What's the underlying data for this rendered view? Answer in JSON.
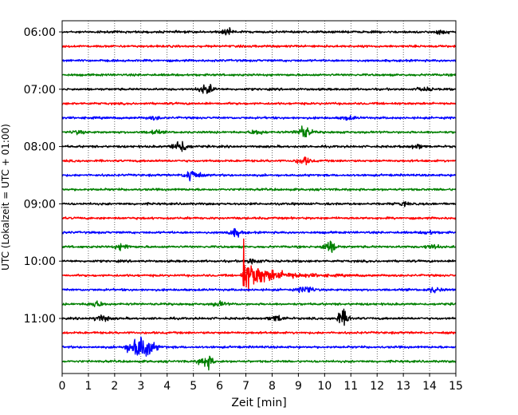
{
  "chart_data": {
    "type": "line",
    "title": "",
    "xlabel": "Zeit  [min]",
    "ylabel": "UTC (Lokalzeit = UTC + 01:00)",
    "xlim": [
      0,
      15
    ],
    "x_ticks": [
      0,
      1,
      2,
      3,
      4,
      5,
      6,
      7,
      8,
      9,
      10,
      11,
      12,
      13,
      14,
      15
    ],
    "y_tick_labels": [
      "06:00",
      "07:00",
      "08:00",
      "09:00",
      "10:00",
      "11:00"
    ],
    "y_tick_rows": [
      0,
      4,
      8,
      12,
      16,
      20
    ],
    "grid": "vertical-dotted",
    "legend": "none",
    "row_minutes": 15,
    "color_cycle": [
      "#000000",
      "#ff0000",
      "#0000ff",
      "#008000"
    ],
    "trace_colors": [
      "black",
      "red",
      "blue",
      "green"
    ],
    "traces": [
      {
        "start": "06:00",
        "color": "black",
        "events": [
          {
            "t": 6.3,
            "amp": 0.2
          },
          {
            "t": 14.5,
            "amp": 0.12
          }
        ]
      },
      {
        "start": "06:15",
        "color": "red",
        "events": []
      },
      {
        "start": "06:30",
        "color": "blue",
        "events": []
      },
      {
        "start": "06:45",
        "color": "green",
        "events": []
      },
      {
        "start": "07:00",
        "color": "black",
        "events": [
          {
            "t": 5.5,
            "amp": 0.35
          },
          {
            "t": 13.8,
            "amp": 0.12
          }
        ]
      },
      {
        "start": "07:15",
        "color": "red",
        "events": []
      },
      {
        "start": "07:30",
        "color": "blue",
        "events": [
          {
            "t": 3.5,
            "amp": 0.1
          },
          {
            "t": 10.9,
            "amp": 0.12
          }
        ]
      },
      {
        "start": "07:45",
        "color": "green",
        "events": [
          {
            "t": 0.6,
            "amp": 0.1
          },
          {
            "t": 3.5,
            "amp": 0.12
          },
          {
            "t": 7.4,
            "amp": 0.15
          },
          {
            "t": 9.2,
            "amp": 0.45
          }
        ]
      },
      {
        "start": "08:00",
        "color": "black",
        "events": [
          {
            "t": 4.5,
            "amp": 0.5
          },
          {
            "t": 13.5,
            "amp": 0.12
          }
        ]
      },
      {
        "start": "08:15",
        "color": "red",
        "events": [
          {
            "t": 9.2,
            "amp": 0.25
          }
        ]
      },
      {
        "start": "08:30",
        "color": "blue",
        "events": [
          {
            "t": 4.95,
            "amp": 0.45
          }
        ]
      },
      {
        "start": "08:45",
        "color": "green",
        "events": []
      },
      {
        "start": "09:00",
        "color": "black",
        "events": [
          {
            "t": 13.0,
            "amp": 0.1
          }
        ]
      },
      {
        "start": "09:15",
        "color": "red",
        "events": []
      },
      {
        "start": "09:30",
        "color": "blue",
        "events": [
          {
            "t": 6.6,
            "amp": 0.25
          },
          {
            "t": 14.0,
            "amp": 0.1
          }
        ]
      },
      {
        "start": "09:45",
        "color": "green",
        "events": [
          {
            "t": 2.3,
            "amp": 0.2
          },
          {
            "t": 10.2,
            "amp": 0.4
          },
          {
            "t": 14.1,
            "amp": 0.15
          }
        ]
      },
      {
        "start": "10:00",
        "color": "black",
        "events": [
          {
            "t": 7.3,
            "amp": 0.2
          }
        ]
      },
      {
        "start": "10:15",
        "color": "red",
        "events": [
          {
            "t": 6.9,
            "amp": 3.0
          }
        ]
      },
      {
        "start": "10:30",
        "color": "blue",
        "events": [
          {
            "t": 9.3,
            "amp": 0.3
          },
          {
            "t": 14.2,
            "amp": 0.18
          }
        ]
      },
      {
        "start": "10:45",
        "color": "green",
        "events": [
          {
            "t": 1.3,
            "amp": 0.2
          },
          {
            "t": 6.0,
            "amp": 0.15
          }
        ]
      },
      {
        "start": "11:00",
        "color": "black",
        "events": [
          {
            "t": 1.5,
            "amp": 0.25
          },
          {
            "t": 8.2,
            "amp": 0.2
          },
          {
            "t": 10.7,
            "amp": 0.5
          }
        ]
      },
      {
        "start": "11:15",
        "color": "red",
        "events": []
      },
      {
        "start": "11:30",
        "color": "blue",
        "events": [
          {
            "t": 3.0,
            "amp": 0.9
          }
        ]
      },
      {
        "start": "11:45",
        "color": "green",
        "events": [
          {
            "t": 5.5,
            "amp": 0.45
          }
        ]
      }
    ]
  }
}
